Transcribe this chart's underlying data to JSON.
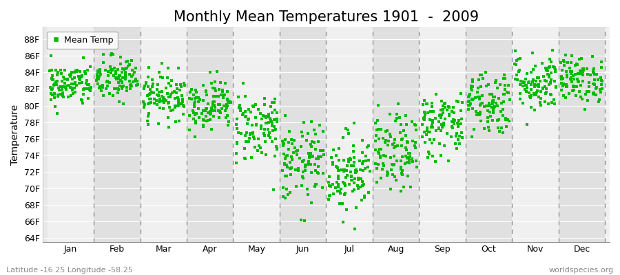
{
  "title": "Monthly Mean Temperatures 1901  -  2009",
  "ylabel": "Temperature",
  "bottom_left": "Latitude -16.25 Longitude -58.25",
  "bottom_right": "worldspecies.org",
  "legend_label": "Mean Temp",
  "yticks": [
    "64F",
    "66F",
    "68F",
    "70F",
    "72F",
    "74F",
    "76F",
    "78F",
    "80F",
    "82F",
    "84F",
    "86F",
    "88F"
  ],
  "ytick_vals": [
    64,
    66,
    68,
    70,
    72,
    74,
    76,
    78,
    80,
    82,
    84,
    86,
    88
  ],
  "ylim": [
    63.5,
    89.5
  ],
  "month_labels": [
    "Jan",
    "Feb",
    "Mar",
    "Apr",
    "May",
    "Jun",
    "Jul",
    "Aug",
    "Sep",
    "Oct",
    "Nov",
    "Dec"
  ],
  "dot_color": "#00bb00",
  "bg_color": "#e8e8e8",
  "band_light": "#f0f0f0",
  "band_dark": "#e0e0e0",
  "monthly_mean_F": [
    82.5,
    83.2,
    81.2,
    80.2,
    77.5,
    73.0,
    72.0,
    74.2,
    77.8,
    80.5,
    82.8,
    83.2
  ],
  "monthly_std_F": [
    1.3,
    1.4,
    1.4,
    1.5,
    2.2,
    2.4,
    2.4,
    2.3,
    2.0,
    2.0,
    1.8,
    1.4
  ],
  "n_years": 109,
  "seed": 42,
  "title_fontsize": 15,
  "axis_label_fontsize": 10,
  "tick_fontsize": 9,
  "annotation_fontsize": 8
}
